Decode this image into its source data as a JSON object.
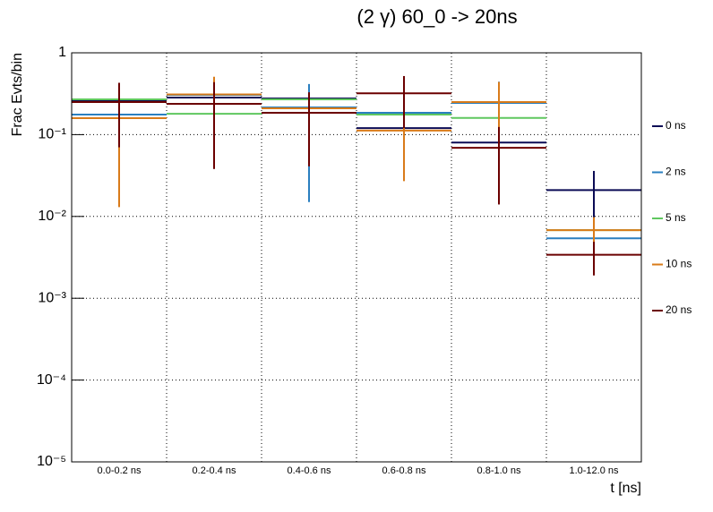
{
  "chart_data": {
    "type": "errorbar-step",
    "title": "(2 γ) 60_0 -> 20ns",
    "xlabel": "t [ns]",
    "ylabel": "Frac Evts/bin",
    "categories": [
      "0.0-0.2 ns",
      "0.2-0.4 ns",
      "0.4-0.6 ns",
      "0.6-0.8 ns",
      "0.8-1.0 ns",
      "1.0-12.0 ns"
    ],
    "log_y": true,
    "grid": true,
    "legend": "right",
    "ylim": [
      1e-05,
      1
    ],
    "yticks": [
      {
        "value": 1e-05,
        "label": "10⁻⁵"
      },
      {
        "value": 0.0001,
        "label": "10⁻⁴"
      },
      {
        "value": 0.001,
        "label": "10⁻³"
      },
      {
        "value": 0.01,
        "label": "10⁻²"
      },
      {
        "value": 0.1,
        "label": "10⁻¹"
      },
      1
    ],
    "series": [
      {
        "name": "0 ns",
        "color": "#0b0b55",
        "values": [
          0.257,
          0.284,
          0.277,
          0.12,
          0.08,
          0.021
        ],
        "errors": [
          0.02,
          0.02,
          0.02,
          0.015,
          0.01,
          0.015
        ]
      },
      {
        "name": "2 ns",
        "color": "#2a7fc0",
        "values": [
          0.176,
          0.306,
          0.215,
          0.185,
          0.244,
          0.0054
        ],
        "errors": [
          0.02,
          0.03,
          0.2,
          0.02,
          0.2,
          0.001
        ]
      },
      {
        "name": "5 ns",
        "color": "#5fc75f",
        "values": [
          0.27,
          0.18,
          0.27,
          0.176,
          0.16,
          0.0068
        ],
        "errors": [
          0.02,
          0.02,
          0.02,
          0.02,
          0.02,
          0.001
        ]
      },
      {
        "name": "10 ns",
        "color": "#d97b1a",
        "values": [
          0.159,
          0.31,
          0.21,
          0.112,
          0.25,
          0.0068
        ],
        "errors": [
          0.146,
          0.2,
          0.03,
          0.085,
          0.19,
          0.003
        ]
      },
      {
        "name": "20 ns",
        "color": "#6b0000",
        "values": [
          0.25,
          0.238,
          0.185,
          0.32,
          0.069,
          0.0034
        ],
        "errors": [
          0.18,
          0.2,
          0.144,
          0.2,
          0.055,
          0.0015
        ]
      }
    ]
  }
}
